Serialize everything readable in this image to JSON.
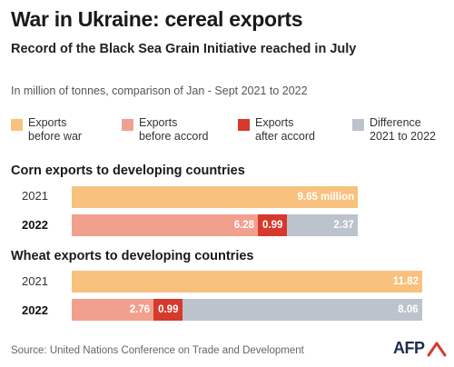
{
  "title": "War in Ukraine: cereal exports",
  "subtitle": "Record of the Black Sea Grain Initiative reached in July",
  "note": "In million of tonnes, comparison of Jan - Sept 2021 to 2022",
  "legend": [
    {
      "line1": "Exports",
      "line2": "before war",
      "color": "#f9c17e"
    },
    {
      "line1": "Exports",
      "line2": "before accord",
      "color": "#f2a08e"
    },
    {
      "line1": "Exports",
      "line2": "after accord",
      "color": "#d63a2c"
    },
    {
      "line1": "Difference",
      "line2": "2021 to 2022",
      "color": "#bcc3cc"
    }
  ],
  "chart_data": [
    {
      "type": "bar",
      "title": "Corn exports to developing countries",
      "unit": "million tonnes",
      "rows": [
        {
          "label": "2021",
          "label_bold": false,
          "segments": [
            {
              "series": "Exports before war",
              "value": 9.65,
              "label": "9.65 million",
              "color": "#f9c17e"
            }
          ]
        },
        {
          "label": "2022",
          "label_bold": true,
          "segments": [
            {
              "series": "Exports before accord",
              "value": 6.28,
              "label": "6.28",
              "color": "#f2a08e"
            },
            {
              "series": "Exports after accord",
              "value": 0.99,
              "label": "0.99",
              "color": "#d63a2c"
            },
            {
              "series": "Difference 2021 to 2022",
              "value": 2.37,
              "label": "2.37",
              "color": "#bcc3cc"
            }
          ]
        }
      ]
    },
    {
      "type": "bar",
      "title": "Wheat exports to developing countries",
      "unit": "million tonnes",
      "rows": [
        {
          "label": "2021",
          "label_bold": false,
          "segments": [
            {
              "series": "Exports before war",
              "value": 11.82,
              "label": "11.82",
              "color": "#f9c17e"
            }
          ]
        },
        {
          "label": "2022",
          "label_bold": true,
          "segments": [
            {
              "series": "Exports before accord",
              "value": 2.76,
              "label": "2.76",
              "color": "#f2a08e"
            },
            {
              "series": "Exports after accord",
              "value": 0.99,
              "label": "0.99",
              "color": "#d63a2c"
            },
            {
              "series": "Difference 2021 to 2022",
              "value": 8.06,
              "label": "8.06",
              "color": "#bcc3cc"
            }
          ]
        }
      ]
    }
  ],
  "source": "Source: United Nations Conference on Trade and Development",
  "logo_text": "AFP"
}
